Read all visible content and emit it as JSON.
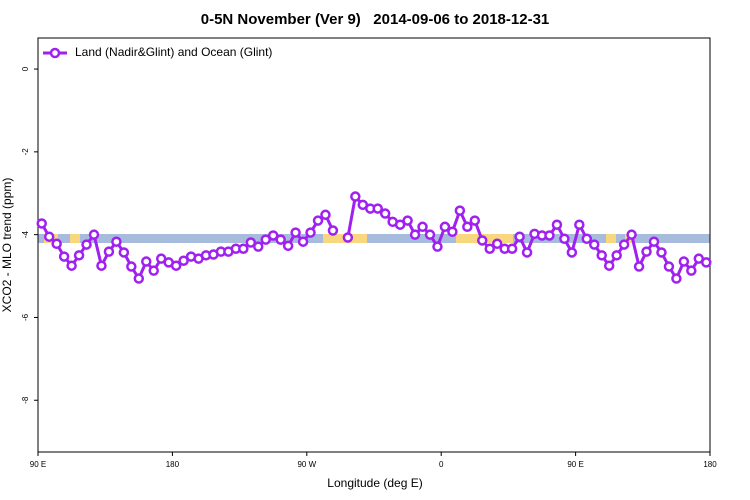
{
  "chart_data": {
    "type": "line",
    "title": "0-5N November (Ver 9)   2014-09-06 to 2018-12-31",
    "x_label": "Longitude (deg E)",
    "y_label": "XCO2 - MLO trend (ppm)",
    "xlim": [
      90,
      540
    ],
    "ylim": [
      -9.25,
      0.75
    ],
    "xticks": [
      {
        "value": 90,
        "label": "90 E"
      },
      180,
      {
        "value": 270,
        "label": "90 W"
      },
      {
        "value": 360,
        "label": "0"
      },
      {
        "value": 450,
        "label": "90 E"
      },
      {
        "value": 540,
        "label": "180"
      }
    ],
    "yticks": [
      0,
      -2,
      -4,
      -6,
      -8
    ],
    "legend": "top-left",
    "x": [
      92.5,
      97.5,
      102.5,
      107.5,
      112.5,
      117.5,
      122.5,
      127.5,
      132.5,
      137.5,
      142.5,
      147.5,
      152.5,
      157.5,
      162.5,
      167.5,
      172.5,
      177.5,
      182.5,
      187.5,
      192.5,
      197.5,
      202.5,
      207.5,
      212.5,
      217.5,
      222.5,
      227.5,
      232.5,
      237.5,
      242.5,
      247.5,
      252.5,
      257.5,
      262.5,
      267.5,
      272.5,
      277.5,
      282.5,
      287.5,
      292.5,
      297.5,
      302.5,
      307.5,
      312.5,
      317.5,
      322.5,
      327.5,
      332.5,
      337.5,
      342.5,
      347.5,
      352.5,
      357.5,
      362.5,
      367.5,
      372.5,
      377.5,
      382.5,
      387.5,
      392.5,
      397.5,
      402.5,
      407.5,
      412.5,
      417.5,
      422.5,
      427.5,
      432.5,
      437.5,
      442.5,
      447.5,
      452.5,
      457.5,
      462.5,
      467.5,
      472.5,
      477.5,
      482.5,
      487.5,
      492.5,
      497.5,
      502.5,
      507.5,
      512.5,
      517.5,
      522.5,
      527.5,
      532.5,
      537.5
    ],
    "series": [
      {
        "name": "Land (Nadir&Glint) and Ocean (Glint)",
        "color": "#a020f0",
        "values": [
          -3.73,
          -4.05,
          -4.22,
          -4.53,
          -4.75,
          -4.5,
          -4.24,
          -4.0,
          -4.75,
          -4.41,
          -4.17,
          -4.43,
          -4.77,
          -5.06,
          -4.65,
          -4.87,
          -4.58,
          -4.67,
          -4.75,
          -4.63,
          -4.53,
          -4.58,
          -4.5,
          -4.48,
          -4.41,
          -4.41,
          -4.34,
          -4.34,
          -4.19,
          -4.29,
          -4.12,
          -4.02,
          -4.12,
          -4.27,
          -3.95,
          -4.17,
          -3.95,
          -3.66,
          -3.52,
          -3.9,
          null,
          -4.07,
          -3.08,
          -3.28,
          -3.37,
          -3.37,
          -3.49,
          -3.69,
          -3.76,
          -3.66,
          -4.0,
          -3.81,
          -4.0,
          -4.29,
          -3.81,
          -3.93,
          -3.42,
          -3.81,
          -3.66,
          -4.14,
          -4.34,
          -4.22,
          -4.34,
          -4.34,
          -4.05,
          -4.43,
          -3.98,
          -4.02,
          -4.02,
          -3.76,
          -4.1,
          -4.43,
          -3.76,
          -4.1,
          -4.24,
          -4.5,
          -4.75,
          -4.5,
          -4.24,
          -4.0,
          -4.77,
          -4.41,
          -4.17,
          -4.43,
          -4.77,
          -5.06,
          -4.65,
          -4.87,
          -4.58,
          -4.67
        ]
      }
    ]
  }
}
